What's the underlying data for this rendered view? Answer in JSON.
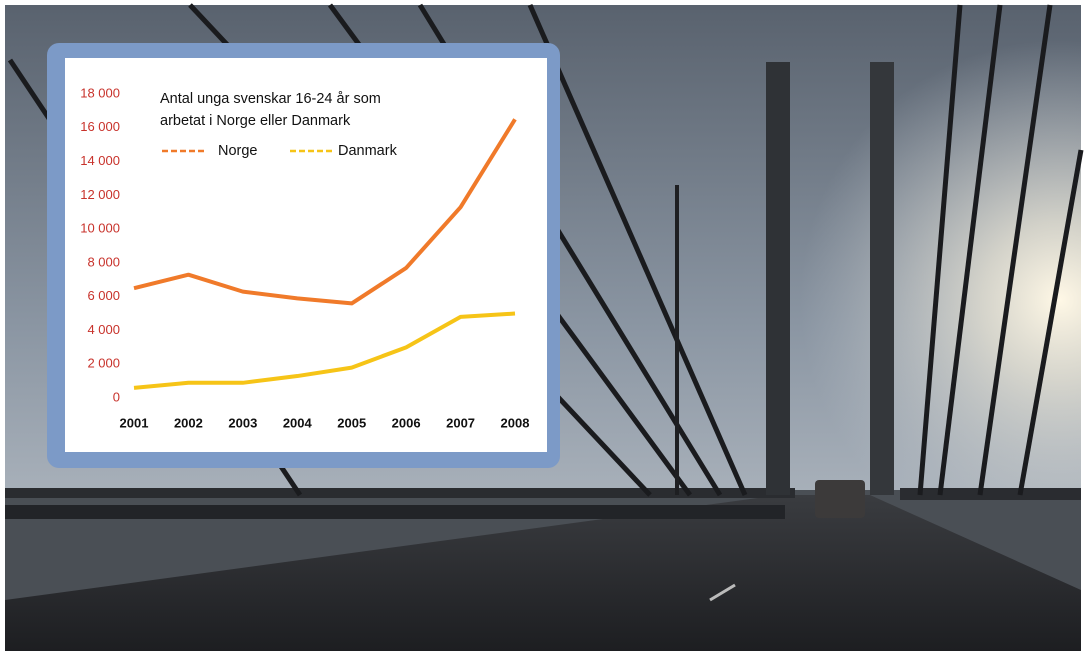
{
  "chart_data": {
    "type": "line",
    "title": "Antal unga svenskar 16-24 år som arbetat i Norge eller Danmark",
    "categories": [
      "2001",
      "2002",
      "2003",
      "2004",
      "2005",
      "2006",
      "2007",
      "2008"
    ],
    "series": [
      {
        "name": "Norge",
        "color": "#f07a2a",
        "values": [
          6500,
          7300,
          6300,
          5900,
          5600,
          7700,
          11300,
          16500
        ]
      },
      {
        "name": "Danmark",
        "color": "#f6c417",
        "values": [
          600,
          900,
          900,
          1300,
          1800,
          3000,
          4800,
          5000
        ]
      }
    ],
    "ylim": [
      0,
      18000
    ],
    "yticks": [
      0,
      {
        "value": 2000,
        "label": "2 000"
      },
      {
        "value": 4000,
        "label": "4 000"
      },
      {
        "value": 6000,
        "label": "6 000"
      },
      {
        "value": 8000,
        "label": "8 000"
      },
      {
        "value": 10000,
        "label": "10 000"
      },
      {
        "value": 12000,
        "label": "12 000"
      },
      {
        "value": 14000,
        "label": "14 000"
      },
      {
        "value": 16000,
        "label": "16 000"
      },
      {
        "value": 18000,
        "label": "18 000"
      }
    ]
  }
}
